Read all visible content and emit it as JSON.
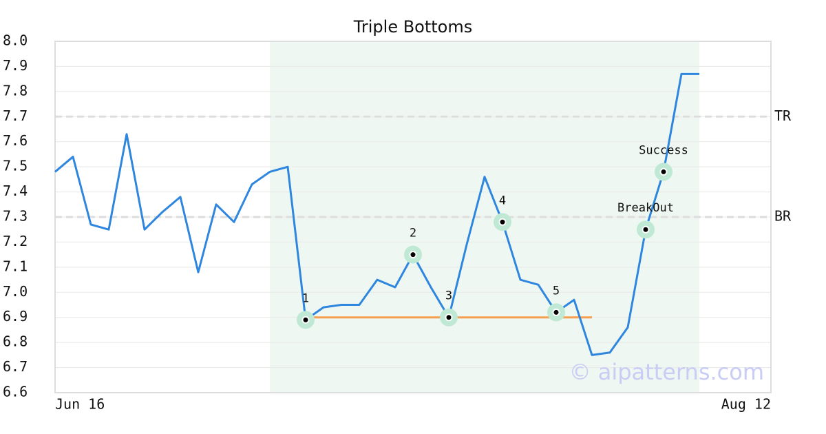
{
  "chart_data": {
    "type": "line",
    "title": "Triple Bottoms",
    "categories": [
      "Jun 16",
      null,
      null,
      null,
      null,
      null,
      null,
      null,
      null,
      null,
      null,
      null,
      null,
      null,
      null,
      null,
      null,
      null,
      null,
      null,
      null,
      null,
      null,
      null,
      null,
      null,
      null,
      null,
      null,
      null,
      null,
      null,
      null,
      null,
      null,
      null,
      null,
      null,
      null,
      null,
      "Aug 12"
    ],
    "values": [
      7.48,
      7.54,
      7.27,
      7.25,
      7.63,
      7.25,
      7.32,
      7.38,
      7.08,
      7.35,
      7.28,
      7.43,
      7.48,
      7.5,
      6.89,
      6.94,
      6.95,
      6.95,
      7.05,
      7.02,
      7.15,
      7.02,
      6.9,
      7.19,
      7.46,
      7.28,
      7.05,
      7.03,
      6.92,
      6.97,
      6.75,
      6.76,
      6.86,
      7.25,
      7.48,
      7.87,
      7.87,
      null,
      null,
      null,
      null
    ],
    "color": "#2e86de",
    "ylim": [
      6.6,
      8.0
    ],
    "yticks": [
      6.6,
      6.7,
      6.8,
      6.9,
      {
        "value": 7.0,
        "label": "7.0"
      },
      7.1,
      7.2,
      7.3,
      7.4,
      7.5,
      7.6,
      7.7,
      7.8,
      7.9,
      {
        "value": 8.0,
        "label": "8.0"
      }
    ],
    "grid": true,
    "highlight": {
      "from": 12,
      "to": 36,
      "color": "#eef7f2"
    },
    "levels": [
      {
        "label": "TR",
        "value": 7.7
      },
      {
        "label": "BR",
        "value": 7.3
      }
    ],
    "support": {
      "from": 14,
      "to": 30,
      "value": 6.9,
      "color": "#f5a050"
    },
    "annotations": [
      {
        "label": "1",
        "at": 14
      },
      {
        "label": "2",
        "at": 20
      },
      {
        "label": "3",
        "at": 22
      },
      {
        "label": "4",
        "at": 25
      },
      {
        "label": "5",
        "at": 28
      },
      {
        "label": "BreakOut",
        "at": 33
      },
      {
        "label": "Success",
        "at": 34
      }
    ],
    "watermark": "© aipatterns.com"
  }
}
